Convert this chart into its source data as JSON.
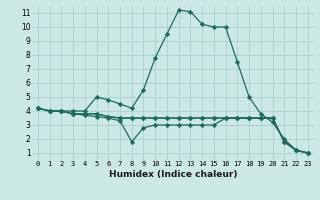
{
  "title": "",
  "xlabel": "Humidex (Indice chaleur)",
  "bg_color": "#cce8e4",
  "grid_color": "#aacfcb",
  "line_color": "#1e6b5e",
  "xlim": [
    -0.5,
    23.5
  ],
  "ylim": [
    0.5,
    11.5
  ],
  "xticks": [
    0,
    1,
    2,
    3,
    4,
    5,
    6,
    7,
    8,
    9,
    10,
    11,
    12,
    13,
    14,
    15,
    16,
    17,
    18,
    19,
    20,
    21,
    22,
    23
  ],
  "yticks": [
    1,
    2,
    3,
    4,
    5,
    6,
    7,
    8,
    9,
    10,
    11
  ],
  "series": [
    [
      4.2,
      4.0,
      4.0,
      4.0,
      4.0,
      5.0,
      4.8,
      4.5,
      4.2,
      5.5,
      7.8,
      9.5,
      11.2,
      11.1,
      10.2,
      10.0,
      10.0,
      7.5,
      5.0,
      3.8,
      3.2,
      2.0,
      1.2,
      1.0
    ],
    [
      4.2,
      4.0,
      4.0,
      3.8,
      3.7,
      3.6,
      3.5,
      3.3,
      1.8,
      2.8,
      3.0,
      3.0,
      3.0,
      3.0,
      3.0,
      3.0,
      3.5,
      3.5,
      3.5,
      3.5,
      3.5,
      1.8,
      1.2,
      1.0
    ],
    [
      4.2,
      4.0,
      4.0,
      3.8,
      3.8,
      3.8,
      3.6,
      3.5,
      3.5,
      3.5,
      3.5,
      3.5,
      3.5,
      3.5,
      3.5,
      3.5,
      3.5,
      3.5,
      3.5,
      3.5,
      3.5,
      1.8,
      1.2,
      1.0
    ],
    [
      4.2,
      4.0,
      4.0,
      3.8,
      3.8,
      3.8,
      3.6,
      3.5,
      3.5,
      3.5,
      3.5,
      3.5,
      3.5,
      3.5,
      3.5,
      3.5,
      3.5,
      3.5,
      3.5,
      3.5,
      3.5,
      1.8,
      1.2,
      1.0
    ]
  ],
  "xlabel_fontsize": 6.5,
  "tick_fontsize": 5.0,
  "ytick_fontsize": 5.5
}
